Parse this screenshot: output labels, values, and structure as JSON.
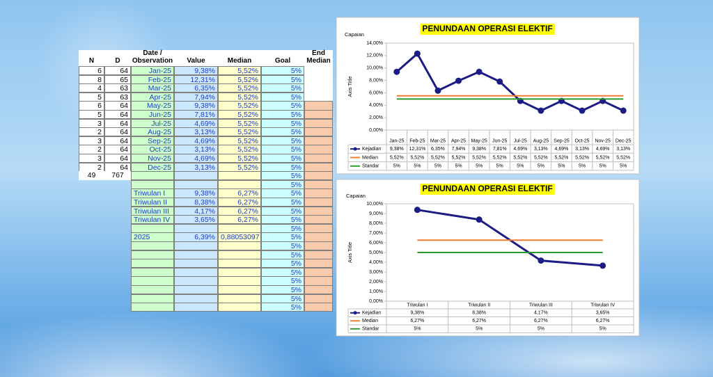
{
  "table": {
    "header": [
      "N",
      "D",
      "Date / Observation",
      "Value",
      "Median",
      "Goal",
      "End Median"
    ],
    "rows": [
      [
        6,
        64,
        "Jan-25",
        "9,38%",
        "5,52%",
        "5%",
        null
      ],
      [
        8,
        65,
        "Feb-25",
        "12,31%",
        "5,52%",
        "5%",
        null
      ],
      [
        4,
        63,
        "Mar-25",
        "6,35%",
        "5,52%",
        "5%",
        null
      ],
      [
        5,
        63,
        "Apr-25",
        "7,94%",
        "5,52%",
        "5%",
        null
      ],
      [
        6,
        64,
        "May-25",
        "9,38%",
        "5,52%",
        "5%",
        null
      ],
      [
        5,
        64,
        "Jun-25",
        "7,81%",
        "5,52%",
        "5%",
        null
      ],
      [
        3,
        64,
        "Jul-25",
        "4,69%",
        "5,52%",
        "5%",
        null
      ],
      [
        2,
        64,
        "Aug-25",
        "3,13%",
        "5,52%",
        "5%",
        null
      ],
      [
        3,
        64,
        "Sep-25",
        "4,69%",
        "5,52%",
        "5%",
        null
      ],
      [
        2,
        64,
        "Oct-25",
        "3,13%",
        "5,52%",
        "5%",
        null
      ],
      [
        3,
        64,
        "Nov-25",
        "4,69%",
        "5,52%",
        "5%",
        null
      ],
      [
        2,
        64,
        "Dec-25",
        "3,13%",
        "5,52%",
        "5%",
        null
      ],
      [
        49,
        767,
        null,
        null,
        null,
        "5%",
        null
      ],
      [
        null,
        null,
        null,
        null,
        null,
        "5%",
        null
      ],
      [
        null,
        null,
        "Triwulan I",
        "9,38%",
        "6,27%",
        "5%",
        null
      ],
      [
        null,
        null,
        "Triwulan II",
        "8,38%",
        "6,27%",
        "5%",
        null
      ],
      [
        null,
        null,
        "Triwulan III",
        "4,17%",
        "6,27%",
        "5%",
        null
      ],
      [
        null,
        null,
        "Triwulan IV",
        "3,65%",
        "6,27%",
        "5%",
        null
      ],
      [
        null,
        null,
        null,
        null,
        null,
        "5%",
        null
      ],
      [
        null,
        null,
        "2025",
        "6,39%",
        "0,88053097",
        "5%",
        null
      ],
      [
        null,
        null,
        null,
        null,
        null,
        "5%",
        null
      ],
      [
        null,
        null,
        null,
        null,
        null,
        "5%",
        null
      ],
      [
        null,
        null,
        null,
        null,
        null,
        "5%",
        null
      ],
      [
        null,
        null,
        null,
        null,
        null,
        "5%",
        null
      ],
      [
        null,
        null,
        null,
        null,
        null,
        "5%",
        null
      ],
      [
        null,
        null,
        null,
        null,
        null,
        "5%",
        null
      ],
      [
        null,
        null,
        null,
        null,
        null,
        "5%",
        null
      ],
      [
        null,
        null,
        null,
        null,
        null,
        "5%",
        null
      ]
    ]
  },
  "chart_data": [
    {
      "type": "line",
      "title": "PENUNDAAN OPERASI ELEKTIF",
      "annotation": "Capaian",
      "ylabel": "Axis Title",
      "categories": [
        "Jan-25",
        "Feb-25",
        "Mar-25",
        "Apr-25",
        "May-25",
        "Jun-25",
        "Jul-25",
        "Aug-25",
        "Sep-25",
        "Oct-25",
        "Nov-25",
        "Dec-25"
      ],
      "ylim": [
        0,
        14
      ],
      "yticks": [
        {
          "value": 0,
          "label": "0,00%"
        },
        {
          "value": 2,
          "label": "2,00%"
        },
        {
          "value": 4,
          "label": "4,00%"
        },
        {
          "value": 6,
          "label": "6,00%"
        },
        {
          "value": 8,
          "label": "8,00%"
        },
        {
          "value": 10,
          "label": "10,00%"
        },
        {
          "value": 12,
          "label": "12,00%"
        },
        {
          "value": 14,
          "label": "14,00%"
        }
      ],
      "grid": false,
      "data_table": true,
      "series": [
        {
          "name": "Kejadian",
          "color": "#1c1c87",
          "marker": true,
          "values": [
            9.38,
            12.31,
            6.35,
            7.94,
            9.38,
            7.81,
            4.69,
            3.13,
            4.69,
            3.13,
            4.69,
            3.13
          ],
          "value_labels": [
            "9,38%",
            "12,31%",
            "6,35%",
            "7,94%",
            "9,38%",
            "7,81%",
            "4,69%",
            "3,13%",
            "4,69%",
            "3,13%",
            "4,69%",
            "3,13%"
          ]
        },
        {
          "name": "Median",
          "color": "#ed7d31",
          "marker": false,
          "values": [
            5.52,
            5.52,
            5.52,
            5.52,
            5.52,
            5.52,
            5.52,
            5.52,
            5.52,
            5.52,
            5.52,
            5.52
          ],
          "value_labels": [
            "5,52%",
            "5,52%",
            "5,52%",
            "5,52%",
            "5,52%",
            "5,52%",
            "5,52%",
            "5,52%",
            "5,52%",
            "5,52%",
            "5,52%",
            "5,52%"
          ]
        },
        {
          "name": "Standar",
          "color": "#2e9a2e",
          "marker": false,
          "values": [
            5,
            5,
            5,
            5,
            5,
            5,
            5,
            5,
            5,
            5,
            5,
            5
          ],
          "value_labels": [
            "5%",
            "5%",
            "5%",
            "5%",
            "5%",
            "5%",
            "5%",
            "5%",
            "5%",
            "5%",
            "5%",
            "5%"
          ]
        }
      ]
    },
    {
      "type": "line",
      "title": "PENUNDAAN OPERASI ELEKTIF",
      "annotation": "Capaian",
      "ylabel": "Axis Title",
      "categories": [
        "Triwulan I",
        "Triwulan II",
        "Triwulan III",
        "Triwulan IV"
      ],
      "ylim": [
        0,
        10
      ],
      "yticks": [
        {
          "value": 0,
          "label": "0,00%"
        },
        {
          "value": 1,
          "label": "1,00%"
        },
        {
          "value": 2,
          "label": "2,00%"
        },
        {
          "value": 3,
          "label": "3,00%"
        },
        {
          "value": 4,
          "label": "4,00%"
        },
        {
          "value": 5,
          "label": "5,00%"
        },
        {
          "value": 6,
          "label": "6,00%"
        },
        {
          "value": 7,
          "label": "7,00%"
        },
        {
          "value": 8,
          "label": "8,00%"
        },
        {
          "value": 9,
          "label": "9,00%"
        },
        {
          "value": 10,
          "label": "10,00%"
        }
      ],
      "grid": false,
      "data_table": true,
      "series": [
        {
          "name": "Kejadian",
          "color": "#1c1c87",
          "marker": true,
          "values": [
            9.38,
            8.38,
            4.17,
            3.65
          ],
          "value_labels": [
            "9,38%",
            "8,38%",
            "4,17%",
            "3,65%"
          ]
        },
        {
          "name": "Median",
          "color": "#ed7d31",
          "marker": false,
          "values": [
            6.27,
            6.27,
            6.27,
            6.27
          ],
          "value_labels": [
            "6,27%",
            "6,27%",
            "6,27%",
            "6,27%"
          ]
        },
        {
          "name": "Standar",
          "color": "#2e9a2e",
          "marker": false,
          "values": [
            5,
            5,
            5,
            5
          ],
          "value_labels": [
            "5%",
            "5%",
            "5%",
            "5%"
          ]
        }
      ]
    }
  ]
}
